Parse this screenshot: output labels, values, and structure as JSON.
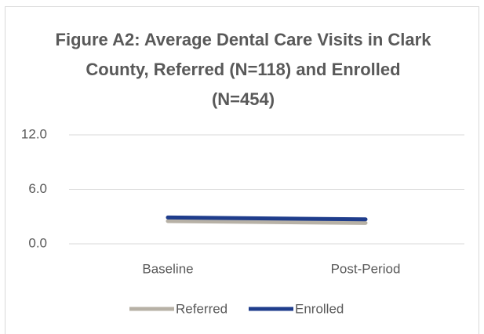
{
  "chart_data": {
    "type": "line",
    "title": "Figure A2: Average Dental Care Visits in Clark County, Referred (N=118) and Enrolled (N=454)",
    "categories": [
      "Baseline",
      "Post-Period"
    ],
    "series": [
      {
        "name": "Referred",
        "color": "#b7b1a6",
        "values": [
          2.5,
          2.3
        ]
      },
      {
        "name": "Enrolled",
        "color": "#1f3d8c",
        "values": [
          2.9,
          2.7
        ]
      }
    ],
    "ylim": [
      0,
      12
    ],
    "yticks": [
      {
        "value": 0,
        "label": "0.0"
      },
      {
        "value": 6,
        "label": "6.0"
      },
      {
        "value": 12,
        "label": "12.0"
      }
    ],
    "grid": true,
    "legend": "bottom"
  }
}
